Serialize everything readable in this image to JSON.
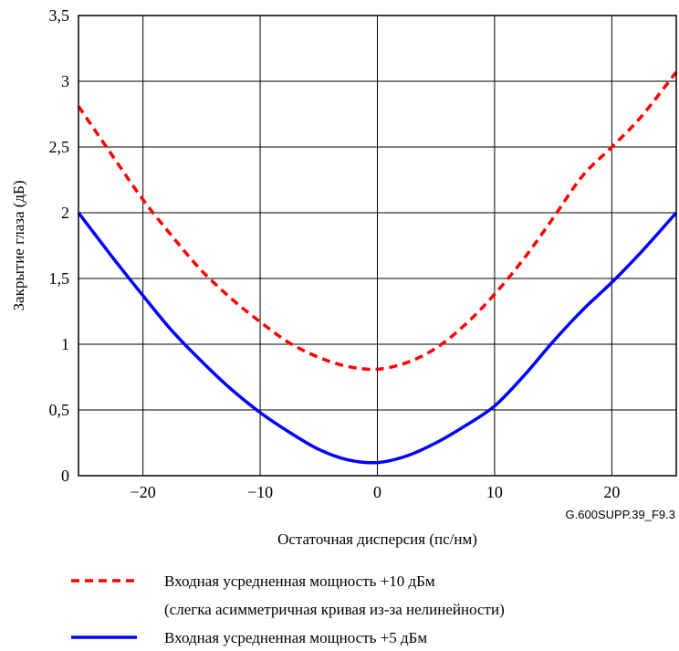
{
  "chart_data": {
    "type": "line",
    "xlabel": "Остаточная дисперсия (пс/нм)",
    "ylabel": "Закрытие глаза (дБ)",
    "figure_id": "G.600SUPP.39_F9.3",
    "xlim": [
      -25.5,
      25.5
    ],
    "ylim": [
      0,
      3.5
    ],
    "x_ticks": [
      -20,
      -10,
      0,
      10,
      20
    ],
    "x_tick_labels": [
      "−20",
      "−10",
      "0",
      "10",
      "20"
    ],
    "y_ticks": [
      0,
      0.5,
      1,
      1.5,
      2,
      2.5,
      3,
      3.5
    ],
    "y_tick_labels": [
      "0",
      "0,5",
      "1",
      "1,5",
      "2",
      "2,5",
      "3",
      "3,5"
    ],
    "grid": true,
    "legend_position": "bottom",
    "series": [
      {
        "name": "Входная усредненная мощность +10 дБм",
        "name_line2": "(слегка асимметричная кривая из-за нелинейности)",
        "color": "#ff0000",
        "style": "dashed",
        "x": [
          -25.5,
          -22.5,
          -20,
          -17.5,
          -15,
          -12.5,
          -10,
          -7.5,
          -5,
          -2.5,
          0,
          2.5,
          5,
          7.5,
          10,
          12.5,
          15,
          17.5,
          20,
          22.5,
          25.5
        ],
        "y": [
          2.81,
          2.42,
          2.1,
          1.82,
          1.56,
          1.35,
          1.17,
          1.01,
          0.9,
          0.83,
          0.81,
          0.86,
          0.97,
          1.15,
          1.38,
          1.65,
          1.96,
          2.28,
          2.5,
          2.73,
          3.07
        ]
      },
      {
        "name": "Входная усредненная мощность +5 дБм",
        "color": "#0000ff",
        "style": "solid",
        "x": [
          -25.5,
          -22.5,
          -20,
          -17.5,
          -15,
          -12.5,
          -10,
          -7.5,
          -5,
          -2.5,
          0,
          2.5,
          5,
          7.5,
          10,
          12.5,
          15,
          17.5,
          20,
          22.5,
          25.5
        ],
        "y": [
          2.0,
          1.65,
          1.37,
          1.1,
          0.87,
          0.66,
          0.48,
          0.33,
          0.2,
          0.12,
          0.1,
          0.15,
          0.25,
          0.38,
          0.53,
          0.76,
          1.02,
          1.26,
          1.47,
          1.7,
          2.0
        ]
      }
    ]
  }
}
